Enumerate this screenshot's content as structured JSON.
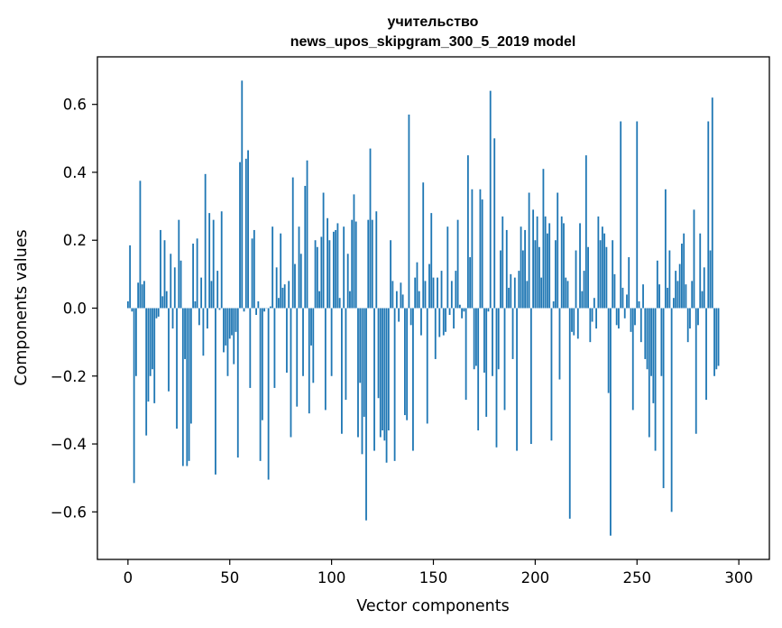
{
  "chart_data": {
    "type": "bar",
    "title": [
      "учительство",
      "news_upos_skipgram_300_5_2019 model"
    ],
    "xlabel": "Vector components",
    "ylabel": "Components values",
    "xlim": [
      -15,
      315
    ],
    "ylim": [
      -0.74,
      0.74
    ],
    "xticks": [
      0,
      50,
      100,
      150,
      200,
      250,
      300
    ],
    "yticks": [
      -0.6,
      -0.4,
      -0.2,
      0.0,
      0.2,
      0.4,
      0.6
    ],
    "ytick_labels": [
      "−0.6",
      "−0.4",
      "−0.2",
      "0.0",
      "0.2",
      "0.4",
      "0.6"
    ],
    "grid": false,
    "bar_color": "#1f77b4",
    "values": [
      0.02,
      0.185,
      -0.01,
      -0.515,
      -0.2,
      0.075,
      0.375,
      0.07,
      0.08,
      -0.375,
      -0.275,
      -0.2,
      -0.18,
      -0.28,
      -0.03,
      -0.025,
      0.23,
      0.035,
      0.2,
      0.05,
      -0.245,
      0.16,
      -0.06,
      0.12,
      -0.355,
      0.26,
      0.14,
      -0.465,
      -0.15,
      -0.465,
      -0.45,
      -0.34,
      0.19,
      0.02,
      0.205,
      -0.05,
      0.09,
      -0.14,
      0.395,
      -0.06,
      0.28,
      0.08,
      0.26,
      -0.49,
      0.11,
      -0.005,
      0.285,
      -0.13,
      -0.11,
      -0.2,
      -0.09,
      -0.08,
      -0.165,
      -0.07,
      -0.44,
      0.43,
      0.67,
      -0.01,
      0.44,
      0.465,
      -0.235,
      0.205,
      0.23,
      -0.02,
      0.02,
      -0.45,
      -0.33,
      -0.01,
      0.0,
      -0.505,
      0.005,
      0.24,
      -0.235,
      0.12,
      0.03,
      0.22,
      0.06,
      0.07,
      -0.19,
      0.08,
      -0.38,
      0.385,
      0.13,
      -0.29,
      0.24,
      0.16,
      -0.2,
      0.36,
      0.435,
      -0.31,
      -0.11,
      -0.22,
      0.2,
      0.18,
      0.05,
      0.21,
      0.34,
      -0.3,
      0.265,
      0.2,
      -0.2,
      0.225,
      0.23,
      0.25,
      0.03,
      -0.37,
      0.24,
      -0.27,
      0.16,
      0.05,
      0.26,
      0.335,
      0.255,
      -0.38,
      -0.22,
      -0.43,
      -0.32,
      -0.625,
      0.26,
      0.47,
      0.26,
      -0.42,
      0.285,
      -0.265,
      -0.38,
      -0.36,
      -0.39,
      -0.455,
      -0.36,
      0.2,
      0.08,
      -0.45,
      0.05,
      -0.04,
      0.075,
      0.04,
      -0.315,
      -0.33,
      0.57,
      -0.05,
      -0.42,
      0.09,
      0.135,
      0.05,
      -0.08,
      0.37,
      0.08,
      -0.34,
      0.13,
      0.28,
      0.09,
      -0.15,
      0.09,
      -0.085,
      0.11,
      -0.08,
      -0.07,
      0.24,
      -0.02,
      0.08,
      -0.06,
      0.11,
      0.26,
      0.01,
      -0.03,
      -0.01,
      -0.27,
      0.45,
      0.15,
      0.35,
      -0.18,
      -0.17,
      -0.36,
      0.35,
      0.32,
      -0.19,
      -0.32,
      -0.01,
      0.64,
      -0.2,
      0.5,
      -0.41,
      -0.18,
      0.17,
      0.27,
      -0.3,
      0.23,
      0.06,
      0.1,
      -0.15,
      0.09,
      -0.42,
      0.11,
      0.24,
      0.17,
      0.23,
      0.08,
      0.34,
      -0.4,
      0.29,
      0.2,
      0.27,
      0.18,
      0.09,
      0.41,
      0.27,
      0.22,
      0.25,
      -0.39,
      0.02,
      0.2,
      0.34,
      -0.21,
      0.27,
      0.25,
      0.09,
      0.08,
      -0.62,
      -0.07,
      -0.08,
      0.17,
      -0.09,
      0.25,
      0.05,
      0.11,
      0.45,
      0.18,
      -0.1,
      -0.04,
      0.03,
      -0.06,
      0.27,
      0.2,
      0.24,
      0.22,
      0.18,
      -0.25,
      -0.67,
      0.2,
      0.1,
      -0.05,
      -0.06,
      0.55,
      0.06,
      -0.03,
      0.04,
      0.15,
      -0.07,
      -0.3,
      -0.05,
      0.55,
      0.02,
      -0.1,
      0.07,
      -0.15,
      -0.18,
      -0.38,
      -0.2,
      -0.28,
      -0.42,
      0.14,
      0.07,
      -0.2,
      -0.53,
      0.35,
      0.06,
      0.17,
      -0.6,
      0.03,
      0.11,
      0.08,
      0.13,
      0.19,
      0.22,
      0.07,
      -0.1,
      -0.06,
      0.08,
      0.29,
      -0.37,
      -0.05,
      0.22,
      0.05,
      0.12,
      -0.27,
      0.55,
      0.17,
      0.62,
      -0.2,
      -0.18,
      -0.17
    ]
  }
}
